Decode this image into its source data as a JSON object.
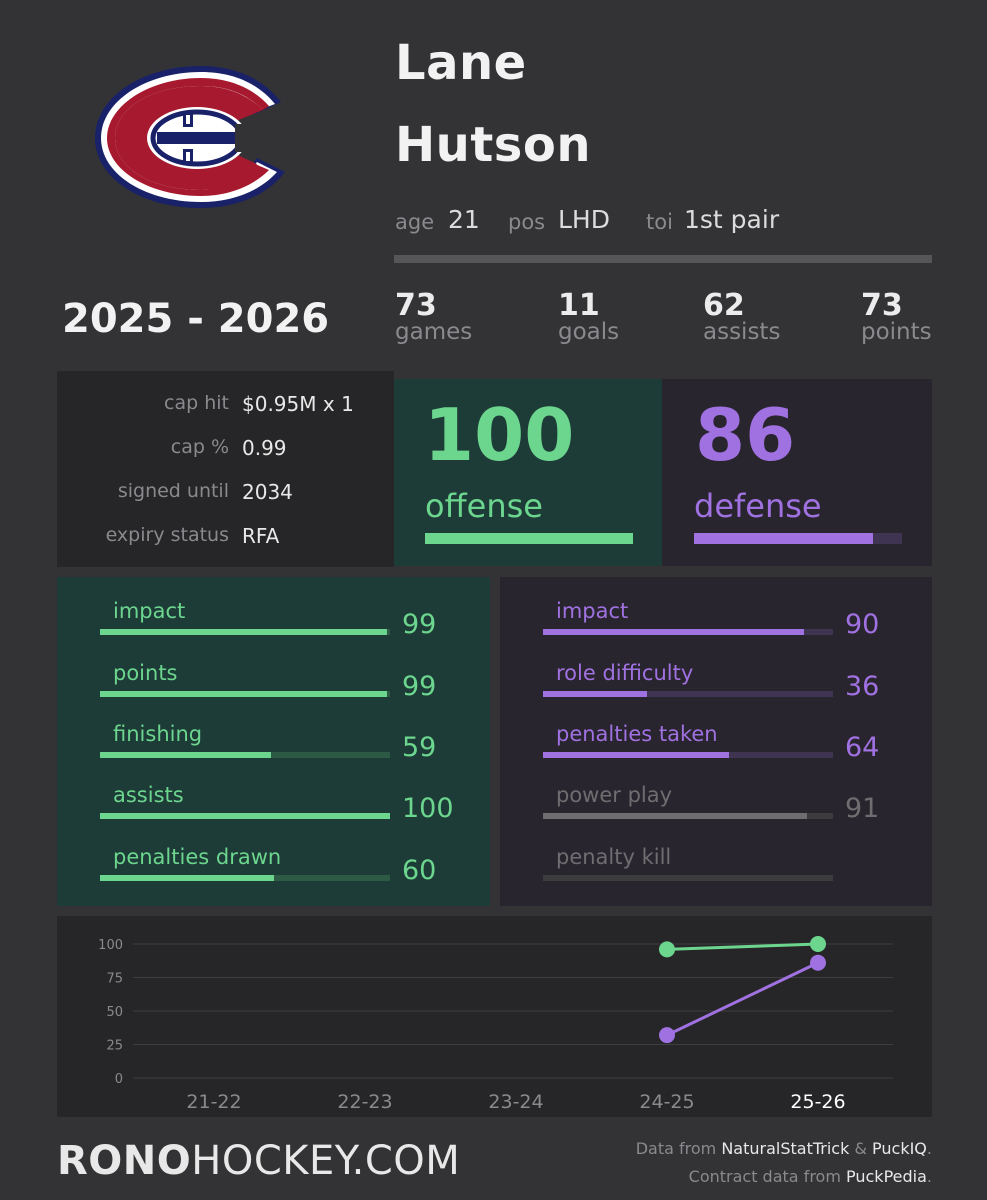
{
  "team": {
    "logo_icon": "montreal-canadiens-logo",
    "colors": {
      "red": "#a6192e",
      "blue": "#192168",
      "white": "#ffffff"
    }
  },
  "player": {
    "first_name": "Lane",
    "last_name": "Hutson"
  },
  "bio": {
    "age_label": "age",
    "age_value": "21",
    "pos_label": "pos",
    "pos_value": "LHD",
    "toi_label": "toi",
    "toi_value": "1st pair"
  },
  "season": "2025 - 2026",
  "season_stats": [
    {
      "value": "73",
      "label": "games"
    },
    {
      "value": "11",
      "label": "goals"
    },
    {
      "value": "62",
      "label": "assists"
    },
    {
      "value": "73",
      "label": "points"
    }
  ],
  "contract": [
    {
      "label": "cap hit",
      "value": "$0.95M x 1"
    },
    {
      "label": "cap %",
      "value": "0.99"
    },
    {
      "label": "signed until",
      "value": "2034"
    },
    {
      "label": "expiry status",
      "value": "RFA"
    }
  ],
  "offense": {
    "score": "100",
    "label": "offense",
    "fraction": 1.0
  },
  "defense": {
    "score": "86",
    "label": "defense",
    "fraction": 0.86
  },
  "offense_detail": [
    {
      "label": "impact",
      "value": "99",
      "fraction": 0.99
    },
    {
      "label": "points",
      "value": "99",
      "fraction": 0.99
    },
    {
      "label": "finishing",
      "value": "59",
      "fraction": 0.59
    },
    {
      "label": "assists",
      "value": "100",
      "fraction": 1.0
    },
    {
      "label": "penalties drawn",
      "value": "60",
      "fraction": 0.6
    }
  ],
  "defense_detail": [
    {
      "label": "impact",
      "value": "90",
      "fraction": 0.9,
      "active": true
    },
    {
      "label": "role difficulty",
      "value": "36",
      "fraction": 0.36,
      "active": true
    },
    {
      "label": "penalties taken",
      "value": "64",
      "fraction": 0.64,
      "active": true
    },
    {
      "label": "power play",
      "value": "91",
      "fraction": 0.91,
      "active": false
    },
    {
      "label": "penalty kill",
      "value": "",
      "fraction": 0,
      "active": false
    }
  ],
  "colors": {
    "green": "#6cd68e",
    "green_track": "#2d5a45",
    "purple": "#a071e0",
    "purple_track": "#3f3552",
    "gray": "#6e6e70",
    "gray_track": "#3c3c3e"
  },
  "chart_data": {
    "type": "line",
    "categories": [
      "21-22",
      "22-23",
      "23-24",
      "24-25",
      "25-26"
    ],
    "ylim": [
      0,
      100
    ],
    "yticks": [
      "0",
      "25",
      "50",
      "75",
      "100"
    ],
    "grid": true,
    "series": [
      {
        "color": "#6cd68e",
        "values": [
          null,
          null,
          null,
          96,
          100
        ]
      },
      {
        "color": "#a071e0",
        "values": [
          null,
          null,
          null,
          32,
          86
        ]
      }
    ]
  },
  "footer": {
    "brand_bold": "RONO",
    "brand_rest": "HOCKEY.COM",
    "credit1_prefix": "Data from ",
    "credit1_src1": "NaturalStatTrick",
    "credit1_amp": " & ",
    "credit1_src2": "PuckIQ",
    "credit1_suffix": ".",
    "credit2_prefix": "Contract data from ",
    "credit2_src": "PuckPedia",
    "credit2_suffix": "."
  }
}
